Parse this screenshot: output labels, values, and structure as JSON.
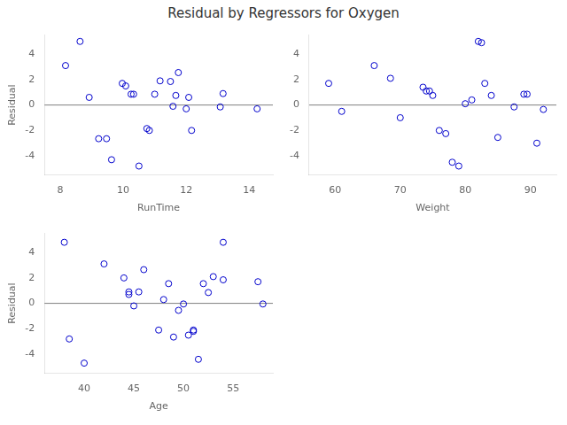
{
  "title": "Residual by Regressors for Oxygen",
  "chart_data": [
    {
      "type": "scatter",
      "xlabel": "RunTime",
      "ylabel": "Residual",
      "x": [
        8.17,
        8.63,
        8.92,
        9.22,
        9.47,
        9.63,
        9.97,
        10.08,
        10.25,
        10.33,
        10.5,
        10.75,
        10.83,
        11.0,
        11.17,
        11.5,
        11.58,
        11.67,
        11.75,
        12.0,
        12.08,
        12.17,
        13.08,
        13.17,
        14.25
      ],
      "values": [
        3.1,
        5.0,
        0.6,
        -2.65,
        -2.65,
        -4.3,
        1.7,
        1.5,
        0.85,
        0.85,
        -4.8,
        -1.85,
        -2.0,
        0.85,
        1.9,
        1.85,
        -0.1,
        0.75,
        2.55,
        -0.3,
        0.6,
        -2.0,
        -0.15,
        0.9,
        -0.3
      ],
      "color": "#0000cc",
      "marker": "circle",
      "xlim": [
        7.5,
        14.75
      ],
      "ylim": [
        -5.5,
        5.5
      ],
      "xticks": [
        8,
        10,
        12,
        14
      ],
      "yticks": [
        -4,
        -2,
        0,
        2,
        4
      ],
      "grid": false
    },
    {
      "type": "scatter",
      "xlabel": "Weight",
      "x": [
        59.0,
        61.0,
        66.0,
        68.5,
        70.0,
        73.5,
        74.0,
        74.5,
        75.0,
        76.0,
        77.0,
        78.0,
        79.0,
        80.0,
        81.0,
        82.0,
        82.5,
        83.0,
        84.0,
        85.0,
        87.5,
        89.0,
        89.5,
        91.0,
        92.0
      ],
      "values": [
        1.7,
        -0.5,
        3.1,
        2.1,
        -1.0,
        1.4,
        1.1,
        1.1,
        0.75,
        -2.0,
        -2.25,
        -4.5,
        -4.8,
        0.1,
        0.4,
        5.0,
        4.9,
        1.7,
        0.75,
        -2.55,
        -0.15,
        0.85,
        0.85,
        -3.0,
        -0.35
      ],
      "color": "#0000cc",
      "marker": "circle",
      "xlim": [
        56,
        94
      ],
      "ylim": [
        -5.5,
        5.5
      ],
      "xticks": [
        60,
        70,
        80,
        90
      ],
      "yticks": [
        -4,
        -2,
        0,
        2,
        4
      ],
      "grid": false
    },
    {
      "type": "scatter",
      "xlabel": "Age",
      "ylabel": "Residual",
      "x": [
        38.0,
        38.5,
        40.0,
        42.0,
        44.0,
        44.5,
        44.5,
        45.0,
        45.5,
        46.0,
        47.5,
        48.0,
        48.5,
        49.0,
        49.5,
        50.0,
        50.5,
        51.0,
        51.0,
        51.5,
        52.0,
        52.5,
        53.0,
        54.0,
        54.0,
        57.5,
        58.0
      ],
      "values": [
        4.8,
        -2.8,
        -4.7,
        3.1,
        2.0,
        0.7,
        0.9,
        -0.2,
        0.9,
        2.65,
        -2.1,
        0.3,
        1.55,
        -2.65,
        -0.55,
        -0.05,
        -2.5,
        -2.1,
        -2.2,
        -4.4,
        1.55,
        0.85,
        2.1,
        4.8,
        1.85,
        1.7,
        -0.05
      ],
      "color": "#0000cc",
      "marker": "circle",
      "xlim": [
        36,
        59
      ],
      "ylim": [
        -5.5,
        5.5
      ],
      "xticks": [
        40,
        45,
        50,
        55
      ],
      "yticks": [
        -4,
        -2,
        0,
        2,
        4
      ],
      "grid": false
    }
  ]
}
